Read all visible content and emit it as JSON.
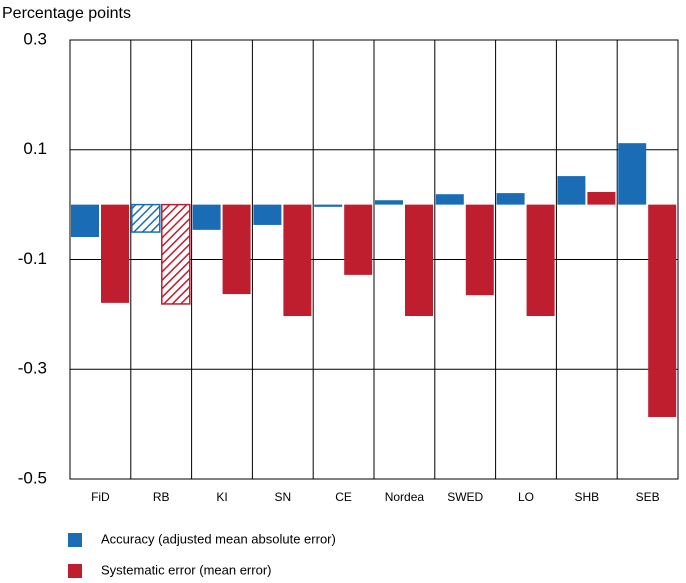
{
  "chart_data": {
    "type": "bar",
    "y_axis_label": "Percentage points",
    "categories": [
      "FiD",
      "RB",
      "KI",
      "SN",
      "CE",
      "Nordea",
      "SWED",
      "LO",
      "SHB",
      "SEB"
    ],
    "series": [
      {
        "name": "Accuracy (adjusted mean absolute error)",
        "color": "#1a6db5",
        "values": [
          -0.059,
          -0.05,
          -0.046,
          -0.037,
          -0.004,
          0.008,
          0.019,
          0.021,
          0.052,
          0.112
        ]
      },
      {
        "name": "Systematic error (mean error)",
        "color": "#bf1e2e",
        "values": [
          -0.179,
          -0.181,
          -0.163,
          -0.203,
          -0.128,
          -0.203,
          -0.165,
          -0.203,
          0.023,
          -0.387
        ]
      }
    ],
    "hatched": [
      false,
      true,
      false,
      false,
      false,
      false,
      false,
      false,
      false,
      false
    ],
    "ylim": [
      -0.5,
      0.3
    ],
    "yticks": [
      0.3,
      0.1,
      -0.1,
      -0.3,
      -0.5
    ],
    "grid": true
  }
}
